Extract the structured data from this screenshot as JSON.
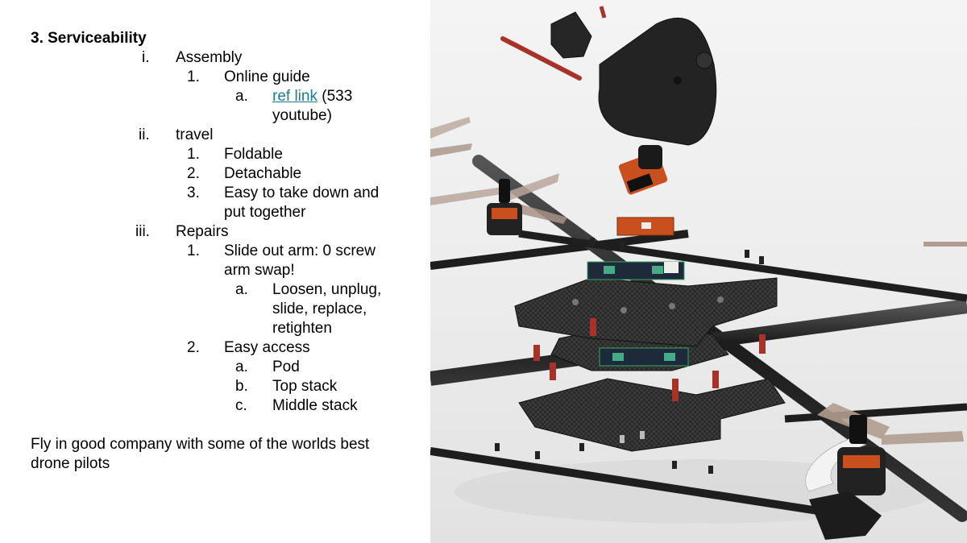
{
  "heading": "3. Serviceability",
  "outline": {
    "i": {
      "marker": "i.",
      "label": "Assembly"
    },
    "i1": {
      "marker": "1.",
      "label": "Online guide"
    },
    "i1a": {
      "marker": "a.",
      "link_text": "ref link",
      "rest_line1": "(533",
      "rest_line2": "youtube)"
    },
    "ii": {
      "marker": "ii.",
      "label": "travel"
    },
    "ii1": {
      "marker": "1.",
      "label": "Foldable"
    },
    "ii2": {
      "marker": "2.",
      "label": "Detachable"
    },
    "ii3": {
      "marker": "3.",
      "line1": "Easy to take down and",
      "line2": "put together"
    },
    "iii": {
      "marker": "iii.",
      "label": "Repairs"
    },
    "iii1": {
      "marker": "1.",
      "line1": "Slide out arm: 0 screw",
      "line2": "arm swap!"
    },
    "iii1a": {
      "marker": "a.",
      "line1": "Loosen, unplug,",
      "line2": "slide, replace,",
      "line3": "retighten"
    },
    "iii2": {
      "marker": "2.",
      "label": "Easy access"
    },
    "iii2a": {
      "marker": "a.",
      "label": "Pod"
    },
    "iii2b": {
      "marker": "b.",
      "label": "Top stack"
    },
    "iii2c": {
      "marker": "c.",
      "label": "Middle stack"
    }
  },
  "footer": {
    "line1": "Fly in good company with some of the worlds best",
    "line2": "drone pilots"
  },
  "colors": {
    "link": "#1a7f8e",
    "carbon": "#2b2b2b",
    "standoff": "#a8322a",
    "pcb": "#c9501e"
  }
}
